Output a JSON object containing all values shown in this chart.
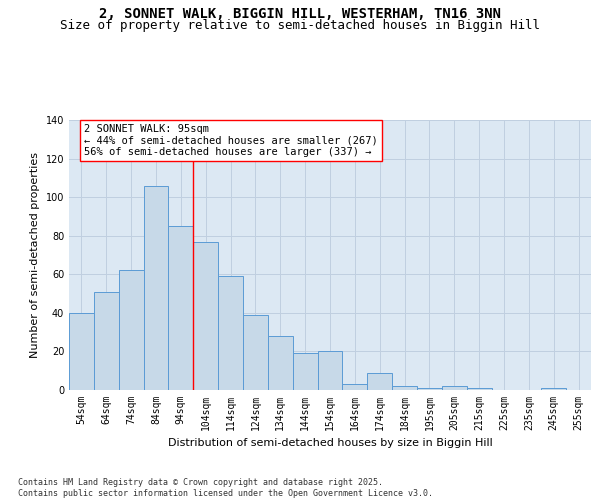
{
  "title_line1": "2, SONNET WALK, BIGGIN HILL, WESTERHAM, TN16 3NN",
  "title_line2": "Size of property relative to semi-detached houses in Biggin Hill",
  "xlabel": "Distribution of semi-detached houses by size in Biggin Hill",
  "ylabel": "Number of semi-detached properties",
  "bins": [
    "54sqm",
    "64sqm",
    "74sqm",
    "84sqm",
    "94sqm",
    "104sqm",
    "114sqm",
    "124sqm",
    "134sqm",
    "144sqm",
    "154sqm",
    "164sqm",
    "174sqm",
    "184sqm",
    "195sqm",
    "205sqm",
    "215sqm",
    "225sqm",
    "235sqm",
    "245sqm",
    "255sqm"
  ],
  "values": [
    40,
    51,
    62,
    106,
    85,
    77,
    59,
    39,
    28,
    19,
    20,
    3,
    9,
    2,
    1,
    2,
    1,
    0,
    0,
    1,
    0
  ],
  "bar_color": "#c7d9e8",
  "bar_edge_color": "#5b9bd5",
  "grid_color": "#c0cfe0",
  "background_color": "#dce8f3",
  "annotation_box_text": "2 SONNET WALK: 95sqm\n← 44% of semi-detached houses are smaller (267)\n56% of semi-detached houses are larger (337) →",
  "red_line_x": 4.5,
  "ylim": [
    0,
    140
  ],
  "yticks": [
    0,
    20,
    40,
    60,
    80,
    100,
    120,
    140
  ],
  "footnote": "Contains HM Land Registry data © Crown copyright and database right 2025.\nContains public sector information licensed under the Open Government Licence v3.0.",
  "title_fontsize": 10,
  "subtitle_fontsize": 9,
  "label_fontsize": 8,
  "tick_fontsize": 7,
  "annotation_fontsize": 7.5,
  "footnote_fontsize": 6
}
